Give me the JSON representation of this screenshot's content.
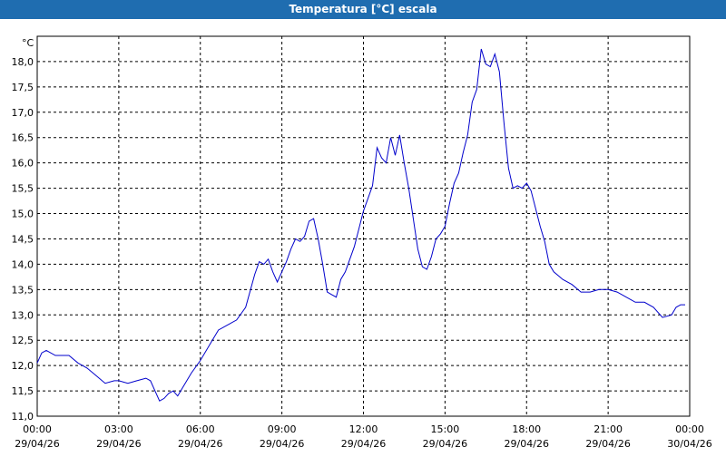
{
  "window": {
    "title": "Temperatura [°C] escala"
  },
  "colors": {
    "titlebar": "#1f6db0",
    "line": "#0000cc",
    "grid": "#000000"
  },
  "chart_data": {
    "type": "line",
    "title": "Temperatura [°C] escala",
    "ylabel": "°C",
    "xlabel": "",
    "ylim": [
      11.0,
      18.5
    ],
    "yticks": [
      "11,0",
      "11,5",
      "12,0",
      "12,5",
      "13,0",
      "13,5",
      "14,0",
      "14,5",
      "15,0",
      "15,5",
      "16,0",
      "16,5",
      "17,0",
      "17,5",
      "18,0"
    ],
    "xlim": [
      "00:00 29/04/26",
      "00:00 30/04/26"
    ],
    "xticks": [
      {
        "time": "00:00",
        "date": "29/04/26"
      },
      {
        "time": "03:00",
        "date": "29/04/26"
      },
      {
        "time": "06:00",
        "date": "29/04/26"
      },
      {
        "time": "09:00",
        "date": "29/04/26"
      },
      {
        "time": "12:00",
        "date": "29/04/26"
      },
      {
        "time": "15:00",
        "date": "29/04/26"
      },
      {
        "time": "18:00",
        "date": "29/04/26"
      },
      {
        "time": "21:00",
        "date": "29/04/26"
      },
      {
        "time": "00:00",
        "date": "30/04/26"
      }
    ],
    "grid": true,
    "series": [
      {
        "x": [
          "00:00",
          "00:10",
          "00:20",
          "00:40",
          "01:10",
          "01:30",
          "01:50",
          "02:10",
          "02:30",
          "02:50",
          "03:00",
          "03:20",
          "03:40",
          "04:00",
          "04:10",
          "04:20",
          "04:30",
          "04:40",
          "04:50",
          "05:00",
          "05:10",
          "05:20",
          "05:40",
          "06:00",
          "06:20",
          "06:40",
          "07:00",
          "07:20",
          "07:40",
          "08:00",
          "08:10",
          "08:20",
          "08:30",
          "08:40",
          "08:50",
          "09:00",
          "09:10",
          "09:20",
          "09:30",
          "09:40",
          "09:50",
          "10:00",
          "10:10",
          "10:20",
          "10:30",
          "10:40",
          "10:50",
          "11:00",
          "11:10",
          "11:20",
          "11:30",
          "11:40",
          "11:50",
          "12:00",
          "12:10",
          "12:20",
          "12:30",
          "12:40",
          "12:50",
          "13:00",
          "13:10",
          "13:20",
          "13:30",
          "13:40",
          "13:50",
          "14:00",
          "14:10",
          "14:20",
          "14:30",
          "14:40",
          "14:50",
          "15:00",
          "15:10",
          "15:20",
          "15:30",
          "15:40",
          "15:50",
          "16:00",
          "16:10",
          "16:20",
          "16:30",
          "16:40",
          "16:50",
          "17:00",
          "17:10",
          "17:20",
          "17:30",
          "17:40",
          "17:50",
          "18:00",
          "18:10",
          "18:20",
          "18:30",
          "18:40",
          "18:50",
          "19:00",
          "19:20",
          "19:40",
          "20:00",
          "20:20",
          "20:40",
          "21:00",
          "21:20",
          "21:40",
          "22:00",
          "22:20",
          "22:40",
          "23:00",
          "23:20",
          "23:30",
          "23:40",
          "23:50"
        ],
        "y": [
          12.05,
          12.25,
          12.3,
          12.2,
          12.2,
          12.05,
          11.95,
          11.8,
          11.65,
          11.7,
          11.7,
          11.65,
          11.7,
          11.75,
          11.7,
          11.5,
          11.3,
          11.35,
          11.45,
          11.5,
          11.4,
          11.55,
          11.85,
          12.1,
          12.4,
          12.7,
          12.8,
          12.9,
          13.15,
          13.8,
          14.05,
          14.0,
          14.1,
          13.85,
          13.65,
          13.85,
          14.05,
          14.3,
          14.5,
          14.45,
          14.55,
          14.85,
          14.9,
          14.5,
          14.0,
          13.45,
          13.4,
          13.35,
          13.7,
          13.85,
          14.1,
          14.35,
          14.7,
          15.05,
          15.3,
          15.55,
          16.3,
          16.1,
          16.0,
          16.5,
          16.15,
          16.55,
          16.0,
          15.5,
          14.9,
          14.3,
          13.95,
          13.9,
          14.15,
          14.5,
          14.6,
          14.75,
          15.2,
          15.6,
          15.8,
          16.2,
          16.55,
          17.2,
          17.45,
          18.25,
          17.95,
          17.9,
          18.15,
          17.8,
          16.8,
          15.9,
          15.5,
          15.55,
          15.5,
          15.6,
          15.45,
          15.1,
          14.75,
          14.45,
          14.0,
          13.85,
          13.7,
          13.6,
          13.45,
          13.45,
          13.5,
          13.5,
          13.45,
          13.35,
          13.25,
          13.25,
          13.15,
          12.95,
          13.0,
          13.15,
          13.2,
          13.2
        ]
      }
    ]
  }
}
